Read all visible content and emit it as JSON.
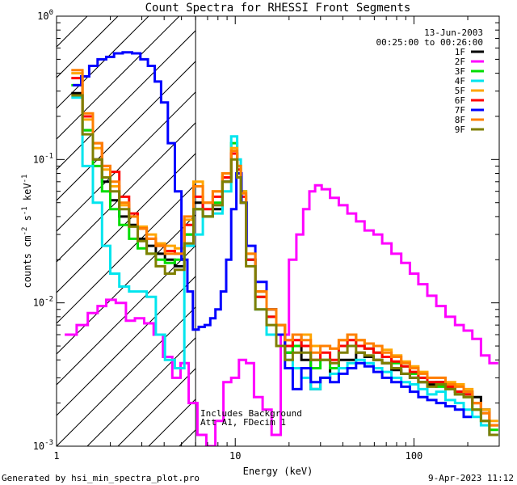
{
  "chart_data": {
    "type": "line",
    "title": "Count Spectra for RHESSI Front Segments",
    "xlabel": "Energy (keV)",
    "ylabel": {
      "base": "counts cm",
      "exp1": "-2",
      "mid1": " s",
      "exp2": "-1",
      "mid2": " keV",
      "exp3": "-1"
    },
    "xscale": "log",
    "yscale": "log",
    "xlim": [
      1,
      300
    ],
    "ylim": [
      0.001,
      1.0
    ],
    "x_ticks": [
      {
        "value": 1,
        "label": "1"
      },
      {
        "value": 10,
        "label": "10"
      },
      {
        "value": 100,
        "label": "100"
      }
    ],
    "y_ticks": [
      {
        "value": 0.001,
        "base": "10",
        "exp": "-3"
      },
      {
        "value": 0.01,
        "base": "10",
        "exp": "-2"
      },
      {
        "value": 0.1,
        "base": "10",
        "exp": "-1"
      },
      {
        "value": 1,
        "base": "10",
        "exp": "0"
      }
    ],
    "hatched_region_x": [
      1,
      6
    ],
    "date": "13-Jun-2003",
    "time_range": "00:25:00 to 00:26:00",
    "annotations": [
      "Includes Background",
      "Att A1, FDecim 1"
    ],
    "legend_position": "top-right",
    "series": [
      {
        "name": "1F",
        "color": "#000000",
        "x": [
          1.3,
          1.5,
          1.7,
          1.9,
          2.1,
          2.4,
          2.7,
          3.0,
          3.4,
          3.8,
          4.3,
          4.9,
          5.5,
          6.2,
          7.0,
          8.0,
          9.0,
          10.0,
          10.5,
          11.0,
          12,
          14,
          16,
          18,
          20,
          22,
          25,
          28,
          32,
          36,
          40,
          45,
          50,
          56,
          63,
          70,
          80,
          90,
          100,
          112,
          126,
          141,
          160,
          180,
          200,
          225,
          250,
          280
        ],
        "values": [
          0.29,
          0.16,
          0.1,
          0.07,
          0.052,
          0.04,
          0.035,
          0.028,
          0.025,
          0.022,
          0.02,
          0.018,
          0.03,
          0.05,
          0.04,
          0.045,
          0.07,
          0.11,
          0.08,
          0.05,
          0.02,
          0.012,
          0.009,
          0.007,
          0.0045,
          0.006,
          0.004,
          0.0025,
          0.003,
          0.0035,
          0.004,
          0.004,
          0.0045,
          0.0042,
          0.004,
          0.0038,
          0.0034,
          0.0032,
          0.003,
          0.0028,
          0.0027,
          0.0028,
          0.0026,
          0.0024,
          0.0024,
          0.0022,
          0.0018,
          0.0012
        ]
      },
      {
        "name": "2F",
        "color": "#ff00ff",
        "x": [
          1.2,
          1.4,
          1.6,
          1.8,
          2.0,
          2.3,
          2.6,
          2.9,
          3.3,
          3.7,
          4.2,
          4.7,
          5.2,
          5.8,
          6.5,
          7.3,
          8.2,
          9.0,
          10.0,
          11.0,
          12.0,
          13.5,
          15,
          17,
          19,
          21,
          23,
          25,
          27,
          29,
          32,
          36,
          40,
          45,
          50,
          56,
          63,
          70,
          80,
          90,
          100,
          112,
          126,
          141,
          160,
          180,
          200,
          225,
          250,
          280
        ],
        "values": [
          0.006,
          0.007,
          0.0085,
          0.0095,
          0.0105,
          0.01,
          0.0075,
          0.0078,
          0.0072,
          0.006,
          0.0042,
          0.003,
          0.0038,
          0.002,
          0.0012,
          0.001,
          0.0015,
          0.0028,
          0.003,
          0.004,
          0.0038,
          0.0022,
          0.0018,
          0.0012,
          0.006,
          0.02,
          0.03,
          0.045,
          0.06,
          0.066,
          0.062,
          0.054,
          0.048,
          0.042,
          0.037,
          0.032,
          0.03,
          0.026,
          0.022,
          0.019,
          0.016,
          0.0135,
          0.0112,
          0.0095,
          0.008,
          0.007,
          0.0064,
          0.0056,
          0.0043,
          0.0038
        ]
      },
      {
        "name": "3F",
        "color": "#00dd00",
        "x": [
          1.3,
          1.5,
          1.7,
          1.9,
          2.1,
          2.4,
          2.7,
          3.0,
          3.4,
          3.8,
          4.3,
          4.9,
          5.5,
          6.2,
          7.0,
          8.0,
          9.0,
          10.0,
          10.5,
          11.0,
          12,
          14,
          16,
          18,
          20,
          22,
          25,
          28,
          32,
          36,
          40,
          45,
          50,
          56,
          63,
          70,
          80,
          90,
          100,
          112,
          126,
          141,
          160,
          180,
          200,
          225,
          250,
          280
        ],
        "values": [
          0.33,
          0.16,
          0.09,
          0.06,
          0.045,
          0.035,
          0.028,
          0.024,
          0.022,
          0.02,
          0.019,
          0.02,
          0.03,
          0.045,
          0.04,
          0.05,
          0.08,
          0.13,
          0.09,
          0.06,
          0.02,
          0.011,
          0.008,
          0.006,
          0.0045,
          0.005,
          0.005,
          0.0035,
          0.004,
          0.0035,
          0.005,
          0.006,
          0.005,
          0.0048,
          0.0045,
          0.0042,
          0.0038,
          0.0036,
          0.0032,
          0.003,
          0.0028,
          0.0026,
          0.0025,
          0.0023,
          0.0022,
          0.0018,
          0.0015,
          0.0013
        ]
      },
      {
        "name": "4F",
        "color": "#00e5ee",
        "x": [
          1.3,
          1.5,
          1.7,
          1.9,
          2.1,
          2.4,
          2.7,
          3.0,
          3.4,
          3.8,
          4.3,
          4.9,
          5.5,
          6.2,
          7.0,
          8.0,
          9.0,
          10.0,
          10.5,
          11.0,
          12,
          14,
          16,
          18,
          20,
          22,
          25,
          28,
          32,
          36,
          40,
          45,
          50,
          56,
          63,
          70,
          80,
          90,
          100,
          112,
          126,
          141,
          160,
          180,
          200,
          225,
          250,
          280
        ],
        "values": [
          0.27,
          0.09,
          0.05,
          0.025,
          0.016,
          0.013,
          0.012,
          0.012,
          0.011,
          0.006,
          0.004,
          0.0035,
          0.025,
          0.03,
          0.04,
          0.042,
          0.06,
          0.145,
          0.1,
          0.06,
          0.02,
          0.009,
          0.006,
          0.005,
          0.004,
          0.0035,
          0.003,
          0.0025,
          0.003,
          0.0032,
          0.0035,
          0.0038,
          0.004,
          0.0038,
          0.0035,
          0.0033,
          0.003,
          0.0028,
          0.0027,
          0.0025,
          0.0023,
          0.0024,
          0.0021,
          0.002,
          0.0018,
          0.0016,
          0.0014,
          0.0012
        ]
      },
      {
        "name": "5F",
        "color": "#ffa500",
        "x": [
          1.3,
          1.5,
          1.7,
          1.9,
          2.1,
          2.4,
          2.7,
          3.0,
          3.4,
          3.8,
          4.3,
          4.9,
          5.5,
          6.2,
          7.0,
          8.0,
          9.0,
          10.0,
          10.5,
          11.0,
          12,
          14,
          16,
          18,
          20,
          22,
          25,
          28,
          32,
          36,
          40,
          45,
          50,
          56,
          63,
          70,
          80,
          90,
          100,
          112,
          126,
          141,
          160,
          180,
          200,
          225,
          250,
          280
        ],
        "values": [
          0.4,
          0.19,
          0.12,
          0.085,
          0.065,
          0.048,
          0.04,
          0.034,
          0.03,
          0.026,
          0.025,
          0.024,
          0.038,
          0.07,
          0.05,
          0.06,
          0.08,
          0.12,
          0.09,
          0.06,
          0.022,
          0.012,
          0.009,
          0.007,
          0.0055,
          0.006,
          0.006,
          0.005,
          0.005,
          0.0048,
          0.0055,
          0.006,
          0.0055,
          0.0052,
          0.005,
          0.0047,
          0.0043,
          0.0039,
          0.0036,
          0.0033,
          0.003,
          0.003,
          0.0028,
          0.0027,
          0.0025,
          0.002,
          0.0018,
          0.0015
        ]
      },
      {
        "name": "6F",
        "color": "#ff0000",
        "x": [
          1.3,
          1.5,
          1.7,
          1.9,
          2.1,
          2.4,
          2.7,
          3.0,
          3.4,
          3.8,
          4.3,
          4.9,
          5.5,
          6.2,
          7.0,
          8.0,
          9.0,
          10.0,
          10.5,
          11.0,
          12,
          14,
          16,
          18,
          20,
          22,
          25,
          28,
          32,
          36,
          40,
          45,
          50,
          56,
          63,
          70,
          80,
          90,
          100,
          112,
          126,
          141,
          160,
          180,
          200,
          225,
          250,
          280
        ],
        "values": [
          0.37,
          0.2,
          0.13,
          0.09,
          0.082,
          0.055,
          0.042,
          0.033,
          0.028,
          0.025,
          0.023,
          0.022,
          0.035,
          0.055,
          0.045,
          0.055,
          0.075,
          0.11,
          0.085,
          0.055,
          0.02,
          0.011,
          0.008,
          0.006,
          0.005,
          0.0055,
          0.005,
          0.004,
          0.0045,
          0.004,
          0.005,
          0.0055,
          0.005,
          0.0048,
          0.0045,
          0.0042,
          0.0039,
          0.0036,
          0.0033,
          0.003,
          0.0028,
          0.0028,
          0.0026,
          0.0024,
          0.0023,
          0.002,
          0.0017,
          0.0014
        ]
      },
      {
        "name": "7F",
        "color": "#0000ff",
        "x": [
          1.3,
          1.45,
          1.6,
          1.8,
          2.0,
          2.2,
          2.5,
          2.8,
          3.1,
          3.4,
          3.7,
          4.0,
          4.4,
          4.8,
          5.2,
          5.6,
          6.0,
          6.5,
          7.0,
          7.5,
          8.0,
          8.6,
          9.2,
          9.8,
          10.5,
          11.2,
          12,
          14,
          16,
          18,
          20,
          22,
          25,
          28,
          32,
          36,
          40,
          45,
          50,
          56,
          63,
          70,
          80,
          90,
          100,
          112,
          126,
          141,
          160,
          180,
          200
        ],
        "values": [
          0.33,
          0.38,
          0.45,
          0.5,
          0.52,
          0.55,
          0.56,
          0.55,
          0.5,
          0.45,
          0.35,
          0.25,
          0.13,
          0.06,
          0.02,
          0.012,
          0.0065,
          0.0068,
          0.007,
          0.0078,
          0.009,
          0.012,
          0.02,
          0.045,
          0.08,
          0.05,
          0.025,
          0.014,
          0.009,
          0.006,
          0.0035,
          0.0025,
          0.0035,
          0.0028,
          0.003,
          0.0028,
          0.0032,
          0.0035,
          0.0038,
          0.0036,
          0.0033,
          0.003,
          0.0028,
          0.0026,
          0.0024,
          0.0022,
          0.0021,
          0.002,
          0.0019,
          0.0018,
          0.0016
        ]
      },
      {
        "name": "8F",
        "color": "#ff7f00",
        "x": [
          1.3,
          1.5,
          1.7,
          1.9,
          2.1,
          2.4,
          2.7,
          3.0,
          3.4,
          3.8,
          4.3,
          4.9,
          5.5,
          6.2,
          7.0,
          8.0,
          9.0,
          10.0,
          10.5,
          11.0,
          12,
          14,
          16,
          18,
          20,
          22,
          25,
          28,
          32,
          36,
          40,
          45,
          50,
          56,
          63,
          70,
          80,
          90,
          100,
          112,
          126,
          141,
          160,
          180,
          200,
          225,
          250,
          280
        ],
        "values": [
          0.42,
          0.21,
          0.13,
          0.09,
          0.07,
          0.05,
          0.04,
          0.033,
          0.028,
          0.025,
          0.022,
          0.022,
          0.04,
          0.065,
          0.05,
          0.06,
          0.08,
          0.115,
          0.09,
          0.058,
          0.022,
          0.012,
          0.009,
          0.007,
          0.0055,
          0.006,
          0.0055,
          0.0045,
          0.005,
          0.0048,
          0.0055,
          0.006,
          0.0055,
          0.0052,
          0.005,
          0.0045,
          0.0042,
          0.0038,
          0.0035,
          0.0032,
          0.003,
          0.003,
          0.0027,
          0.0026,
          0.0024,
          0.002,
          0.0017,
          0.0014
        ]
      },
      {
        "name": "9F",
        "color": "#7f7f00",
        "x": [
          1.3,
          1.5,
          1.7,
          1.9,
          2.1,
          2.4,
          2.7,
          3.0,
          3.4,
          3.8,
          4.3,
          4.9,
          5.5,
          6.2,
          7.0,
          8.0,
          9.0,
          10.0,
          10.5,
          11.0,
          12,
          14,
          16,
          18,
          20,
          22,
          25,
          28,
          32,
          36,
          40,
          45,
          50,
          56,
          63,
          70,
          80,
          90,
          100,
          112,
          126,
          141,
          160,
          180,
          200,
          225,
          250,
          280
        ],
        "values": [
          0.28,
          0.15,
          0.1,
          0.075,
          0.06,
          0.045,
          0.034,
          0.027,
          0.022,
          0.018,
          0.016,
          0.017,
          0.026,
          0.045,
          0.04,
          0.048,
          0.07,
          0.1,
          0.075,
          0.05,
          0.018,
          0.009,
          0.007,
          0.005,
          0.004,
          0.0045,
          0.0045,
          0.004,
          0.004,
          0.0038,
          0.0045,
          0.005,
          0.0045,
          0.0043,
          0.004,
          0.0038,
          0.0035,
          0.0032,
          0.003,
          0.0028,
          0.0026,
          0.0027,
          0.0025,
          0.0023,
          0.0022,
          0.0018,
          0.0015,
          0.0012
        ]
      }
    ]
  },
  "footer": {
    "left": "Generated by hsi_min_spectra_plot.pro",
    "right": "9-Apr-2023 11:12"
  }
}
